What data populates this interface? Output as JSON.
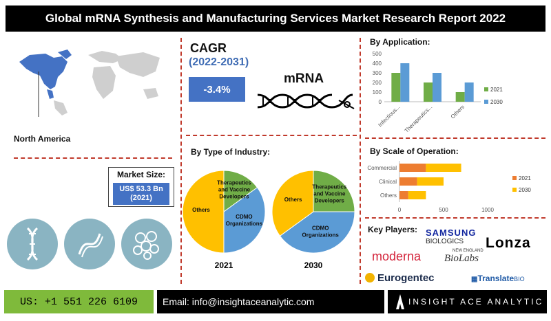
{
  "title": "Global mRNA Synthesis and Manufacturing Services Market Research Report 2022",
  "region": {
    "label": "North America"
  },
  "market_size": {
    "title": "Market Size:",
    "value_line1": "US$ 53.3 Bn",
    "value_line2": "(2021)"
  },
  "cagr": {
    "title": "CAGR",
    "years": "(2022-2031)",
    "value": "-3.4%"
  },
  "mrna_label": "mRNA",
  "sections": {
    "by_type_of_industry": "By Type of Industry:",
    "by_application": "By Application:",
    "by_scale": "By Scale of Operation:",
    "key_players": "Key Players:"
  },
  "icons": [
    "dna-icon",
    "dna-helix-icon",
    "molecule-icon",
    "north-america-map-icon",
    "mrna-strand-icon"
  ],
  "colors": {
    "accent_blue": "#4472c4",
    "green": "#70ad47",
    "yellow": "#ffc000",
    "orange": "#ed7d31",
    "blue_light": "#5b9bd5",
    "footer_green": "#7fba3b",
    "divider_red": "#c0392b"
  },
  "chart_data": [
    {
      "type": "pie",
      "title": "2021",
      "slices": [
        {
          "label": "Others",
          "value": 50,
          "color": "#ffc000"
        },
        {
          "label": "Therapeutics and Vaccine Developers",
          "value": 15,
          "color": "#70ad47"
        },
        {
          "label": "CDMO Organizations",
          "value": 35,
          "color": "#5b9bd5"
        }
      ]
    },
    {
      "type": "pie",
      "title": "2030",
      "slices": [
        {
          "label": "Others",
          "value": 35,
          "color": "#ffc000"
        },
        {
          "label": "Therapeutics and Vaccine Developers",
          "value": 25,
          "color": "#70ad47"
        },
        {
          "label": "CDMO Organizations",
          "value": 40,
          "color": "#5b9bd5"
        }
      ]
    },
    {
      "type": "bar",
      "title": "By Application:",
      "categories": [
        "Infectious...",
        "Therapeutics...",
        "Others"
      ],
      "series": [
        {
          "name": "2021",
          "values": [
            300,
            200,
            100
          ],
          "color": "#70ad47"
        },
        {
          "name": "2030",
          "values": [
            400,
            300,
            200
          ],
          "color": "#5b9bd5"
        }
      ],
      "ylim": [
        0,
        500
      ],
      "yticks": [
        0,
        100,
        200,
        300,
        400,
        500
      ],
      "legend": "right"
    },
    {
      "type": "bar",
      "orientation": "horizontal",
      "stacked": true,
      "title": "By Scale of Operation:",
      "categories": [
        "Commercial",
        "Clinical",
        "Others"
      ],
      "series": [
        {
          "name": "2021",
          "values": [
            300,
            200,
            100
          ],
          "color": "#ed7d31"
        },
        {
          "name": "2030",
          "values": [
            400,
            300,
            200
          ],
          "color": "#ffc000"
        }
      ],
      "xlim": [
        0,
        1000
      ],
      "xticks": [
        0,
        500,
        1000
      ],
      "legend": "right"
    }
  ],
  "key_players": {
    "samsung": "SAMSUNG",
    "samsung_sub": "BIOLOGICS",
    "lonza": "Lonza",
    "moderna": "moderna",
    "neb_top": "NEW ENGLAND",
    "neb_main": "BioLabs",
    "eurogentec": "Eurogentec",
    "translate": "Translate",
    "translate_bio": "BIO"
  },
  "footer": {
    "phone": "US: +1 551 226 6109",
    "email": "Email: info@insightaceanalytic.com",
    "brand": "INSIGHT ACE ANALYTIC"
  }
}
